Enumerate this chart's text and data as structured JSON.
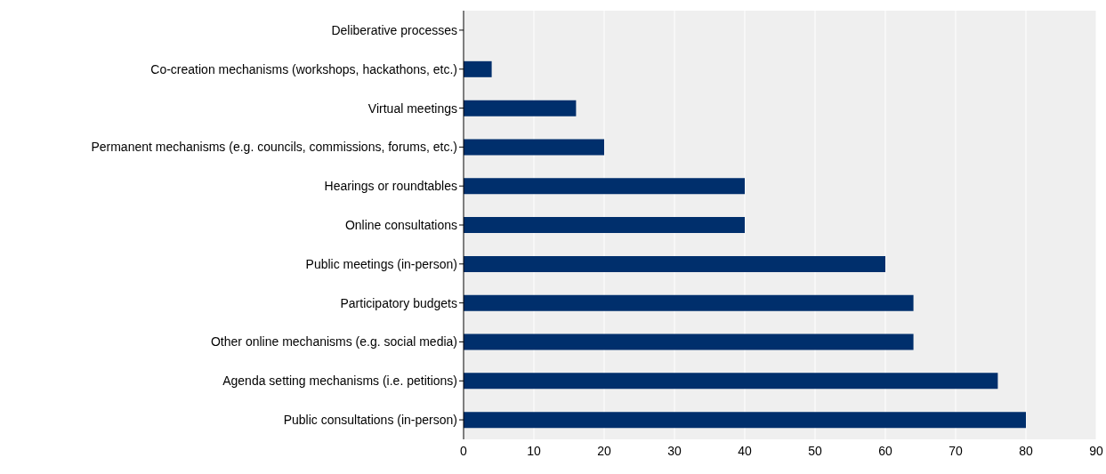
{
  "chart_data": {
    "type": "bar",
    "orientation": "horizontal",
    "categories": [
      "Deliberative processes",
      "Co-creation mechanisms (workshops, hackathons, etc.)",
      "Virtual meetings",
      "Permanent mechanisms (e.g. councils, commissions, forums, etc.)",
      "Hearings or roundtables",
      "Online consultations",
      "Public meetings (in-person)",
      "Participatory budgets",
      "Other online mechanisms (e.g. social media)",
      "Agenda setting mechanisms (i.e. petitions)",
      "Public consultations (in-person)"
    ],
    "values": [
      0,
      4,
      16,
      20,
      40,
      40,
      60,
      64,
      64,
      76,
      80
    ],
    "color": "#002f6c",
    "xlim": [
      0,
      90
    ],
    "xticks": [
      0,
      10,
      20,
      30,
      40,
      50,
      60,
      70,
      80,
      90
    ],
    "grid": "x"
  }
}
